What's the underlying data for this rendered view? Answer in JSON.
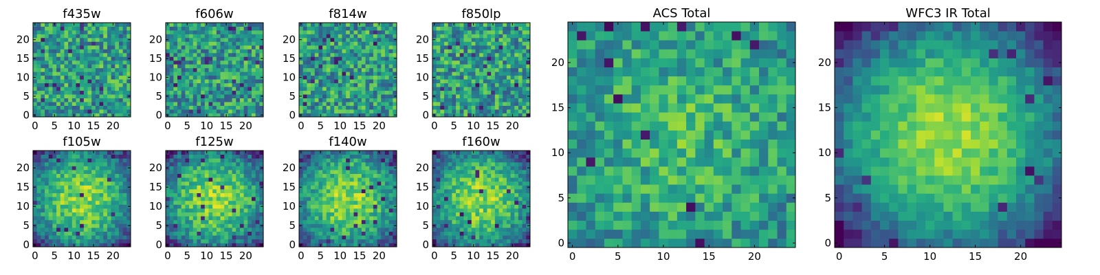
{
  "chart_data": [
    {
      "type": "heatmap",
      "title": "f435w",
      "xticks": [
        0,
        5,
        10,
        15,
        20
      ],
      "yticks": [
        0,
        5,
        10,
        15,
        20
      ],
      "xlim": [
        -0.5,
        24.5
      ],
      "ylim": [
        -0.5,
        24.5
      ],
      "grid_size": 25,
      "colormap": "viridis",
      "pattern": "noise",
      "seed": 11
    },
    {
      "type": "heatmap",
      "title": "f606w",
      "xticks": [
        0,
        5,
        10,
        15,
        20
      ],
      "yticks": [
        0,
        5,
        10,
        15,
        20
      ],
      "xlim": [
        -0.5,
        24.5
      ],
      "ylim": [
        -0.5,
        24.5
      ],
      "grid_size": 25,
      "colormap": "viridis",
      "pattern": "noise",
      "seed": 23
    },
    {
      "type": "heatmap",
      "title": "f814w",
      "xticks": [
        0,
        5,
        10,
        15,
        20
      ],
      "yticks": [
        0,
        5,
        10,
        15,
        20
      ],
      "xlim": [
        -0.5,
        24.5
      ],
      "ylim": [
        -0.5,
        24.5
      ],
      "grid_size": 25,
      "colormap": "viridis",
      "pattern": "noise",
      "seed": 37
    },
    {
      "type": "heatmap",
      "title": "f850lp",
      "xticks": [
        0,
        5,
        10,
        15,
        20
      ],
      "yticks": [
        0,
        5,
        10,
        15,
        20
      ],
      "xlim": [
        -0.5,
        24.5
      ],
      "ylim": [
        -0.5,
        24.5
      ],
      "grid_size": 25,
      "colormap": "viridis",
      "pattern": "noise",
      "seed": 41
    },
    {
      "type": "heatmap",
      "title": "f105w",
      "xticks": [
        0,
        5,
        10,
        15,
        20
      ],
      "yticks": [
        0,
        5,
        10,
        15,
        20
      ],
      "xlim": [
        -0.5,
        24.5
      ],
      "ylim": [
        -0.5,
        24.5
      ],
      "grid_size": 25,
      "colormap": "viridis",
      "pattern": "source",
      "seed": 53
    },
    {
      "type": "heatmap",
      "title": "f125w",
      "xticks": [
        0,
        5,
        10,
        15,
        20
      ],
      "yticks": [
        0,
        5,
        10,
        15,
        20
      ],
      "xlim": [
        -0.5,
        24.5
      ],
      "ylim": [
        -0.5,
        24.5
      ],
      "grid_size": 25,
      "colormap": "viridis",
      "pattern": "source",
      "seed": 67
    },
    {
      "type": "heatmap",
      "title": "f140w",
      "xticks": [
        0,
        5,
        10,
        15,
        20
      ],
      "yticks": [
        0,
        5,
        10,
        15,
        20
      ],
      "xlim": [
        -0.5,
        24.5
      ],
      "ylim": [
        -0.5,
        24.5
      ],
      "grid_size": 25,
      "colormap": "viridis",
      "pattern": "source",
      "seed": 71
    },
    {
      "type": "heatmap",
      "title": "f160w",
      "xticks": [
        0,
        5,
        10,
        15,
        20
      ],
      "yticks": [
        0,
        5,
        10,
        15,
        20
      ],
      "xlim": [
        -0.5,
        24.5
      ],
      "ylim": [
        -0.5,
        24.5
      ],
      "grid_size": 25,
      "colormap": "viridis",
      "pattern": "source",
      "seed": 83
    },
    {
      "type": "heatmap",
      "title": "ACS Total",
      "xticks": [
        0,
        5,
        10,
        15,
        20
      ],
      "yticks": [
        0,
        5,
        10,
        15,
        20
      ],
      "xlim": [
        -0.5,
        24.5
      ],
      "ylim": [
        -0.5,
        24.5
      ],
      "grid_size": 25,
      "colormap": "viridis",
      "pattern": "total",
      "seed": 97
    },
    {
      "type": "heatmap",
      "title": "WFC3 IR Total",
      "xticks": [
        0,
        5,
        10,
        15,
        20
      ],
      "yticks": [
        0,
        5,
        10,
        15,
        20
      ],
      "xlim": [
        -0.5,
        24.5
      ],
      "ylim": [
        -0.5,
        24.5
      ],
      "grid_size": 25,
      "colormap": "viridis",
      "pattern": "source_total",
      "seed": 101
    }
  ]
}
